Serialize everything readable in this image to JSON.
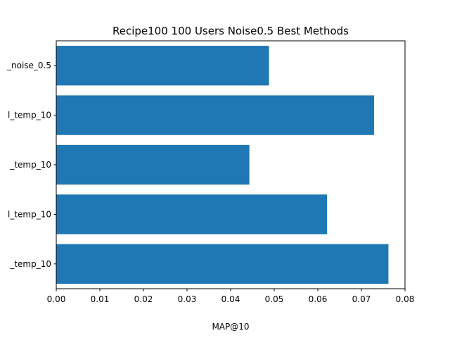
{
  "chart_data": {
    "type": "bar",
    "orientation": "horizontal",
    "title": "Recipe100 100 Users Noise0.5 Best Methods",
    "xlabel": "MAP@10",
    "ylabel": "",
    "categories": [
      "_noise_0.5",
      "l_temp_10",
      "_temp_10",
      "l_temp_10",
      "_temp_10"
    ],
    "values": [
      0.0488,
      0.0729,
      0.0443,
      0.0621,
      0.0762
    ],
    "xlim": [
      0,
      0.08
    ],
    "xticks": [
      "0.00",
      "0.01",
      "0.02",
      "0.03",
      "0.04",
      "0.05",
      "0.06",
      "0.07",
      "0.08"
    ],
    "bar_color": "#1f77b4",
    "grid": false,
    "legend": "none"
  }
}
